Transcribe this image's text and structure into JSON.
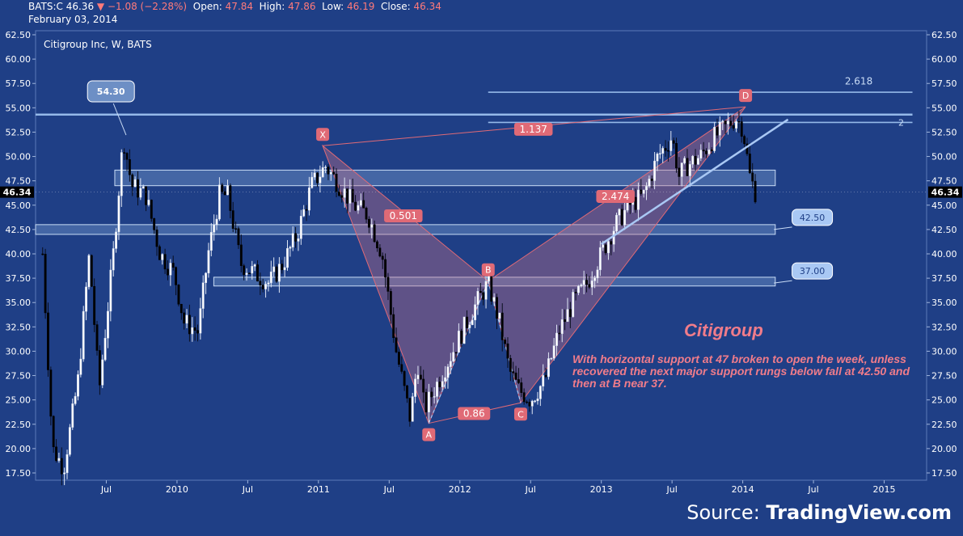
{
  "header": {
    "symbol": "BATS:C",
    "last": "46.36",
    "change": "−1.08 (−2.28%)",
    "open_label": "Open:",
    "open": "47.84",
    "high_label": "High:",
    "high": "47.86",
    "low_label": "Low:",
    "low": "46.19",
    "close_label": "Close:",
    "close": "46.34",
    "date": "February 03, 2014"
  },
  "chart_title": "Citigroup Inc, W, BATS",
  "annotation_title": "Citigroup",
  "annotation_text": "With horizontal support at 47 broken to open the week, unless recovered the next major support rungs below fall at 42.50 and then at B near 37.",
  "source_prefix": "Source: ",
  "source_name": "TradingView.com",
  "colors": {
    "background": "#1f3f86",
    "pattern": "#e06a76",
    "line": "#9cc0ef",
    "up_candle": "#ffffff",
    "down_candle": "#000000"
  },
  "chart_data": {
    "type": "candlestick",
    "title": "Citigroup Inc, W, BATS",
    "ylim": [
      17.0,
      63.0
    ],
    "yticks": [
      "62.50",
      "60.00",
      "57.50",
      "55.00",
      "52.50",
      "50.00",
      "47.50",
      "45.00",
      "42.50",
      "40.00",
      "37.50",
      "35.00",
      "32.50",
      "30.00",
      "27.50",
      "25.00",
      "22.50",
      "20.00",
      "17.50"
    ],
    "xticks": [
      {
        "label": "Jul",
        "t": 2009.5
      },
      {
        "label": "2010",
        "t": 2010.0
      },
      {
        "label": "Jul",
        "t": 2010.5
      },
      {
        "label": "2011",
        "t": 2011.0
      },
      {
        "label": "Jul",
        "t": 2011.5
      },
      {
        "label": "2012",
        "t": 2012.0
      },
      {
        "label": "Jul",
        "t": 2012.5
      },
      {
        "label": "2013",
        "t": 2013.0
      },
      {
        "label": "Jul",
        "t": 2013.5
      },
      {
        "label": "2014",
        "t": 2014.0
      },
      {
        "label": "Jul",
        "t": 2014.5
      },
      {
        "label": "2015",
        "t": 2015.0
      }
    ],
    "price_label": "46.34",
    "price_path": [
      [
        2009.05,
        40
      ],
      [
        2009.12,
        20
      ],
      [
        2009.2,
        18
      ],
      [
        2009.3,
        27
      ],
      [
        2009.38,
        40
      ],
      [
        2009.45,
        26
      ],
      [
        2009.55,
        40
      ],
      [
        2009.62,
        52
      ],
      [
        2009.68,
        47
      ],
      [
        2009.78,
        46
      ],
      [
        2009.88,
        40
      ],
      [
        2009.98,
        38
      ],
      [
        2010.05,
        33
      ],
      [
        2010.15,
        32
      ],
      [
        2010.22,
        40
      ],
      [
        2010.3,
        46
      ],
      [
        2010.36,
        46
      ],
      [
        2010.45,
        39
      ],
      [
        2010.55,
        38
      ],
      [
        2010.65,
        37
      ],
      [
        2010.75,
        39
      ],
      [
        2010.85,
        42
      ],
      [
        2010.95,
        47
      ],
      [
        2011.05,
        49
      ],
      [
        2011.15,
        47
      ],
      [
        2011.25,
        45
      ],
      [
        2011.35,
        44
      ],
      [
        2011.45,
        40
      ],
      [
        2011.55,
        30
      ],
      [
        2011.65,
        23
      ],
      [
        2011.7,
        29
      ],
      [
        2011.75,
        24
      ],
      [
        2011.85,
        27
      ],
      [
        2011.95,
        30
      ],
      [
        2012.05,
        33
      ],
      [
        2012.12,
        35
      ],
      [
        2012.2,
        37
      ],
      [
        2012.28,
        33
      ],
      [
        2012.35,
        28
      ],
      [
        2012.42,
        26
      ],
      [
        2012.5,
        25
      ],
      [
        2012.6,
        27
      ],
      [
        2012.7,
        32
      ],
      [
        2012.8,
        35
      ],
      [
        2012.9,
        37
      ],
      [
        2013.0,
        40
      ],
      [
        2013.1,
        43
      ],
      [
        2013.2,
        45
      ],
      [
        2013.3,
        46
      ],
      [
        2013.4,
        50
      ],
      [
        2013.5,
        52
      ],
      [
        2013.55,
        48
      ],
      [
        2013.6,
        49
      ],
      [
        2013.7,
        50
      ],
      [
        2013.8,
        52
      ],
      [
        2013.88,
        53
      ],
      [
        2013.95,
        54
      ],
      [
        2014.0,
        53
      ],
      [
        2014.05,
        48
      ],
      [
        2014.09,
        46.3
      ]
    ],
    "support_levels": [
      {
        "value": 54.3,
        "t0": 2009.0,
        "t1": 2015.2
      },
      {
        "value": 53.5,
        "t0": 2012.2,
        "t1": 2015.2
      },
      {
        "value": 56.6,
        "t0": 2012.2,
        "t1": 2015.2
      }
    ],
    "zones": [
      {
        "lo": 47.0,
        "hi": 48.6,
        "t0": 2009.56,
        "t1": 2014.23
      },
      {
        "lo": 42.0,
        "hi": 43.0,
        "t0": 2009.0,
        "t1": 2014.23
      },
      {
        "lo": 36.7,
        "hi": 37.6,
        "t0": 2010.26,
        "t1": 2014.23
      }
    ],
    "pattern_points": [
      {
        "label": "X",
        "t": 2011.03,
        "v": 51.1
      },
      {
        "label": "A",
        "t": 2011.78,
        "v": 22.6
      },
      {
        "label": "B",
        "t": 2012.2,
        "v": 37.2
      },
      {
        "label": "C",
        "t": 2012.43,
        "v": 24.7
      },
      {
        "label": "D",
        "t": 2014.02,
        "v": 55.1
      }
    ],
    "ratios": [
      {
        "label": "1.137",
        "t": 2012.52,
        "v": 52.8
      },
      {
        "label": "0.501",
        "t": 2011.6,
        "v": 43.9
      },
      {
        "label": "0.86",
        "t": 2012.1,
        "v": 23.6
      },
      {
        "label": "2.474",
        "t": 2013.1,
        "v": 45.9
      }
    ],
    "fib_label": "2.618",
    "fib2_label": "2",
    "trendline": {
      "t0": 2013.0,
      "v0": 41.0,
      "t1": 2014.32,
      "v1": 53.8
    },
    "callouts": [
      {
        "label": "54.30",
        "t": 2009.55,
        "v": 54.3,
        "target_t": 2009.64,
        "target_v": 52.2
      },
      {
        "label": "42.50",
        "t": 2014.48,
        "v": 42.5,
        "target_t": 2014.22,
        "target_v": 42.5
      },
      {
        "label": "37.00",
        "t": 2014.48,
        "v": 37.0,
        "target_t": 2014.22,
        "target_v": 37.0
      }
    ]
  }
}
